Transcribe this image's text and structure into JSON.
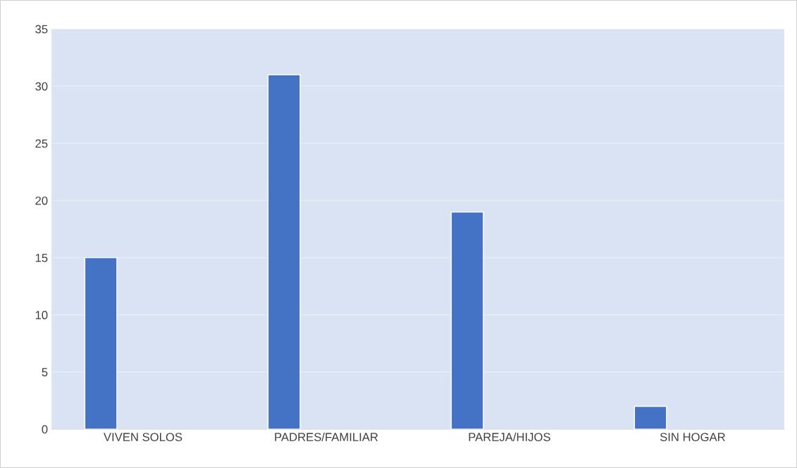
{
  "chart_data": {
    "type": "bar",
    "categories": [
      "VIVEN SOLOS",
      "PADRES/FAMILIAR",
      "PAREJA/HIJOS",
      "SIN HOGAR"
    ],
    "values": [
      15,
      31,
      19,
      2
    ],
    "color": "#4472c4",
    "ylim": [
      0,
      35
    ],
    "yticks": [
      0,
      5,
      10,
      15,
      20,
      25,
      30,
      35
    ],
    "grid": "y"
  }
}
